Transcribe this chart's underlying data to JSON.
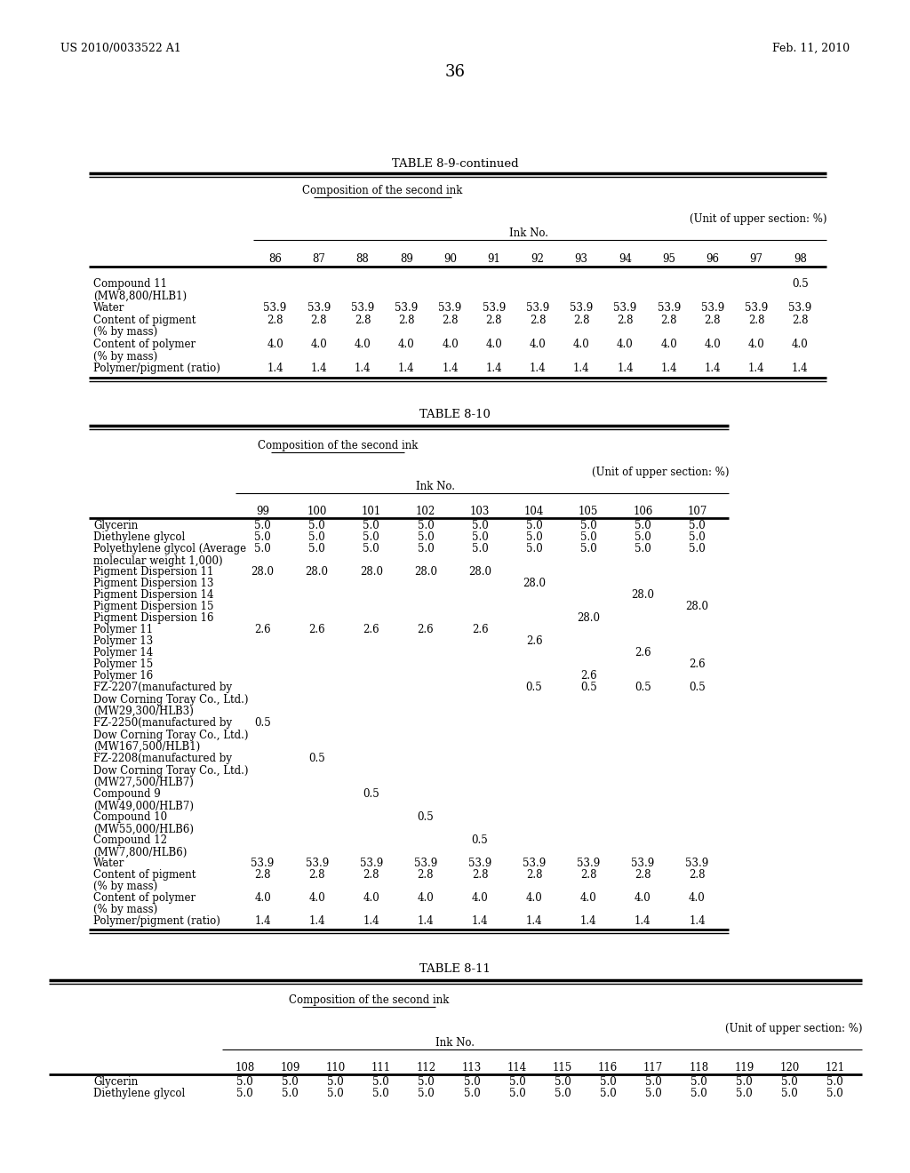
{
  "patent_left": "US 2010/0033522 A1",
  "patent_right": "Feb. 11, 2010",
  "page_number": "36",
  "background_color": "#ffffff",
  "text_color": "#000000",
  "table1": {
    "title": "TABLE 8-9-continued",
    "subtitle": "Composition of the second ink",
    "unit_note": "(Unit of upper section: %)",
    "ink_no_label": "Ink No.",
    "columns": [
      "86",
      "87",
      "88",
      "89",
      "90",
      "91",
      "92",
      "93",
      "94",
      "95",
      "96",
      "97",
      "98"
    ],
    "rows": [
      {
        "label": "Compound 11\n(MW8,800/HLB1)",
        "values": [
          "",
          "",
          "",
          "",
          "",
          "",
          "",
          "",
          "",
          "",
          "",
          "",
          "0.5"
        ]
      },
      {
        "label": "Water",
        "values": [
          "53.9",
          "53.9",
          "53.9",
          "53.9",
          "53.9",
          "53.9",
          "53.9",
          "53.9",
          "53.9",
          "53.9",
          "53.9",
          "53.9",
          "53.9"
        ]
      },
      {
        "label": "Content of pigment\n(% by mass)",
        "values": [
          "2.8",
          "2.8",
          "2.8",
          "2.8",
          "2.8",
          "2.8",
          "2.8",
          "2.8",
          "2.8",
          "2.8",
          "2.8",
          "2.8",
          "2.8"
        ]
      },
      {
        "label": "Content of polymer\n(% by mass)",
        "values": [
          "4.0",
          "4.0",
          "4.0",
          "4.0",
          "4.0",
          "4.0",
          "4.0",
          "4.0",
          "4.0",
          "4.0",
          "4.0",
          "4.0",
          "4.0"
        ]
      },
      {
        "label": "Polymer/pigment (ratio)",
        "values": [
          "1.4",
          "1.4",
          "1.4",
          "1.4",
          "1.4",
          "1.4",
          "1.4",
          "1.4",
          "1.4",
          "1.4",
          "1.4",
          "1.4",
          "1.4"
        ]
      }
    ]
  },
  "table2": {
    "title": "TABLE 8-10",
    "subtitle": "Composition of the second ink",
    "unit_note": "(Unit of upper section: %)",
    "ink_no_label": "Ink No.",
    "columns": [
      "99",
      "100",
      "101",
      "102",
      "103",
      "104",
      "105",
      "106",
      "107"
    ],
    "rows": [
      {
        "label": "Glycerin",
        "values": [
          "5.0",
          "5.0",
          "5.0",
          "5.0",
          "5.0",
          "5.0",
          "5.0",
          "5.0",
          "5.0"
        ]
      },
      {
        "label": "Diethylene glycol",
        "values": [
          "5.0",
          "5.0",
          "5.0",
          "5.0",
          "5.0",
          "5.0",
          "5.0",
          "5.0",
          "5.0"
        ]
      },
      {
        "label": "Polyethylene glycol (Average\nmolecular weight 1,000)",
        "values": [
          "5.0",
          "5.0",
          "5.0",
          "5.0",
          "5.0",
          "5.0",
          "5.0",
          "5.0",
          "5.0"
        ]
      },
      {
        "label": "Pigment Dispersion 11",
        "values": [
          "28.0",
          "28.0",
          "28.0",
          "28.0",
          "28.0",
          "",
          "",
          "",
          ""
        ]
      },
      {
        "label": "Pigment Dispersion 13",
        "values": [
          "",
          "",
          "",
          "",
          "",
          "28.0",
          "",
          "",
          ""
        ]
      },
      {
        "label": "Pigment Dispersion 14",
        "values": [
          "",
          "",
          "",
          "",
          "",
          "",
          "",
          "28.0",
          ""
        ]
      },
      {
        "label": "Pigment Dispersion 15",
        "values": [
          "",
          "",
          "",
          "",
          "",
          "",
          "",
          "",
          "28.0"
        ]
      },
      {
        "label": "Pigment Dispersion 16",
        "values": [
          "",
          "",
          "",
          "",
          "",
          "",
          "28.0",
          "",
          ""
        ]
      },
      {
        "label": "Polymer 11",
        "values": [
          "2.6",
          "2.6",
          "2.6",
          "2.6",
          "2.6",
          "",
          "",
          "",
          ""
        ]
      },
      {
        "label": "Polymer 13",
        "values": [
          "",
          "",
          "",
          "",
          "",
          "2.6",
          "",
          "",
          ""
        ]
      },
      {
        "label": "Polymer 14",
        "values": [
          "",
          "",
          "",
          "",
          "",
          "",
          "",
          "2.6",
          ""
        ]
      },
      {
        "label": "Polymer 15",
        "values": [
          "",
          "",
          "",
          "",
          "",
          "",
          "",
          "",
          "2.6"
        ]
      },
      {
        "label": "Polymer 16",
        "values": [
          "",
          "",
          "",
          "",
          "",
          "",
          "2.6",
          "",
          ""
        ]
      },
      {
        "label": "FZ-2207(manufactured by\nDow Corning Toray Co., Ltd.)\n(MW29,300/HLB3)",
        "values": [
          "",
          "",
          "",
          "",
          "",
          "0.5",
          "0.5",
          "0.5",
          "0.5"
        ]
      },
      {
        "label": "FZ-2250(manufactured by\nDow Corning Toray Co., Ltd.)\n(MW167,500/HLB1)",
        "values": [
          "0.5",
          "",
          "",
          "",
          "",
          "",
          "",
          "",
          ""
        ]
      },
      {
        "label": "FZ-2208(manufactured by\nDow Corning Toray Co., Ltd.)\n(MW27,500/HLB7)",
        "values": [
          "",
          "0.5",
          "",
          "",
          "",
          "",
          "",
          "",
          ""
        ]
      },
      {
        "label": "Compound 9\n(MW49,000/HLB7)",
        "values": [
          "",
          "",
          "0.5",
          "",
          "",
          "",
          "",
          "",
          ""
        ]
      },
      {
        "label": "Compound 10\n(MW55,000/HLB6)",
        "values": [
          "",
          "",
          "",
          "0.5",
          "",
          "",
          "",
          "",
          ""
        ]
      },
      {
        "label": "Compound 12\n(MW7,800/HLB6)",
        "values": [
          "",
          "",
          "",
          "",
          "0.5",
          "",
          "",
          "",
          ""
        ]
      },
      {
        "label": "Water",
        "values": [
          "53.9",
          "53.9",
          "53.9",
          "53.9",
          "53.9",
          "53.9",
          "53.9",
          "53.9",
          "53.9"
        ]
      },
      {
        "label": "Content of pigment\n(% by mass)",
        "values": [
          "2.8",
          "2.8",
          "2.8",
          "2.8",
          "2.8",
          "2.8",
          "2.8",
          "2.8",
          "2.8"
        ]
      },
      {
        "label": "Content of polymer\n(% by mass)",
        "values": [
          "4.0",
          "4.0",
          "4.0",
          "4.0",
          "4.0",
          "4.0",
          "4.0",
          "4.0",
          "4.0"
        ]
      },
      {
        "label": "Polymer/pigment (ratio)",
        "values": [
          "1.4",
          "1.4",
          "1.4",
          "1.4",
          "1.4",
          "1.4",
          "1.4",
          "1.4",
          "1.4"
        ]
      }
    ]
  },
  "table3": {
    "title": "TABLE 8-11",
    "subtitle": "Composition of the second ink",
    "unit_note": "(Unit of upper section: %)",
    "ink_no_label": "Ink No.",
    "columns": [
      "108",
      "109",
      "110",
      "111",
      "112",
      "113",
      "114",
      "115",
      "116",
      "117",
      "118",
      "119",
      "120",
      "121"
    ],
    "rows": [
      {
        "label": "Glycerin",
        "values": [
          "5.0",
          "5.0",
          "5.0",
          "5.0",
          "5.0",
          "5.0",
          "5.0",
          "5.0",
          "5.0",
          "5.0",
          "5.0",
          "5.0",
          "5.0",
          "5.0"
        ]
      },
      {
        "label": "Diethylene glycol",
        "values": [
          "5.0",
          "5.0",
          "5.0",
          "5.0",
          "5.0",
          "5.0",
          "5.0",
          "5.0",
          "5.0",
          "5.0",
          "5.0",
          "5.0",
          "5.0",
          "5.0"
        ]
      }
    ]
  }
}
